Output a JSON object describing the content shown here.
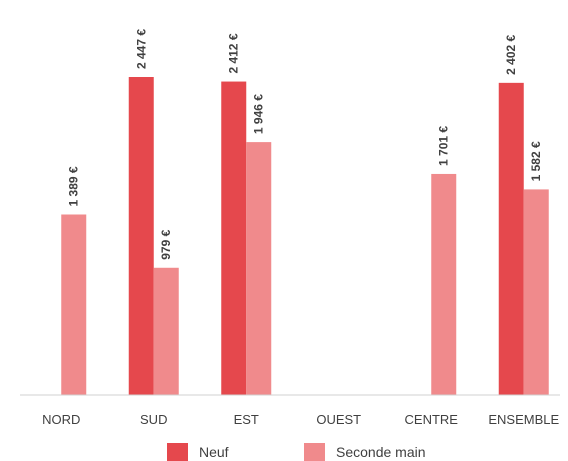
{
  "chart_data": {
    "type": "bar",
    "categories": [
      "NORD",
      "SUD",
      "EST",
      "OUEST",
      "CENTRE",
      "ENSEMBLE"
    ],
    "series": [
      {
        "name": "Neuf",
        "color": "#e5484d",
        "values": [
          null,
          2447,
          2412,
          null,
          null,
          2402
        ],
        "labels": [
          "",
          "2 447 €",
          "2 412 €",
          "",
          "",
          "2 402 €"
        ]
      },
      {
        "name": "Seconde main",
        "color": "#f08a8c",
        "values": [
          1389,
          979,
          1946,
          null,
          1701,
          1582
        ],
        "labels": [
          "1 389 €",
          "979 €",
          "1 946 €",
          "",
          "1 701 €",
          "1 582 €"
        ]
      }
    ],
    "ylim": [
      0,
      2447
    ],
    "grid": false,
    "legend": "bottom"
  }
}
